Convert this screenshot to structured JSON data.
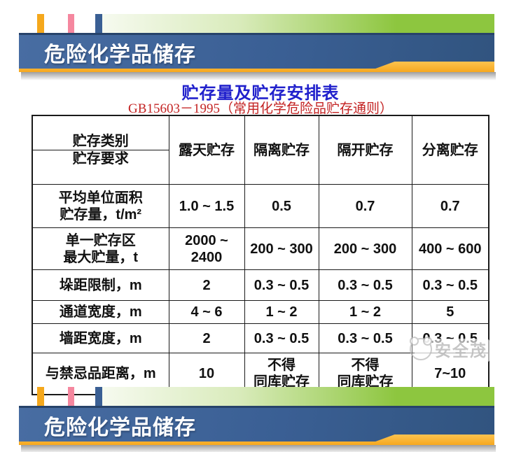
{
  "header": {
    "title": "危险化学品储存"
  },
  "footer": {
    "title": "危险化学品储存"
  },
  "main": {
    "title": "贮存量及贮存安排表",
    "subtitle": "GB15603－1995（常用化学危险品贮存通则）"
  },
  "table": {
    "corner_top": "贮存类别",
    "corner_bottom": "贮存要求",
    "columns": [
      "露天贮存",
      "隔离贮存",
      "隔开贮存",
      "分离贮存"
    ],
    "rows": [
      {
        "label": "平均单位面积\n贮存量，t/m²",
        "values": [
          "1.0 ~ 1.5",
          "0.5",
          "0.7",
          "0.7"
        ]
      },
      {
        "label": "单一贮存区\n最大贮量，t",
        "values": [
          "2000 ~\n2400",
          "200 ~ 300",
          "200 ~ 300",
          "400 ~ 600"
        ]
      },
      {
        "label": "垛距限制，m",
        "values": [
          "2",
          "0.3 ~ 0.5",
          "0.3 ~ 0.5",
          "0.3 ~ 0.5"
        ]
      },
      {
        "label": "通道宽度，m",
        "values": [
          "4 ~ 6",
          "1 ~ 2",
          "1 ~ 2",
          "5"
        ]
      },
      {
        "label": "墙距宽度，m",
        "values": [
          "2",
          "0.3 ~ 0.5",
          "0.3 ~ 0.5",
          "0.3 ~ 0.5"
        ]
      },
      {
        "label": "与禁忌品距离，m",
        "values": [
          "10",
          "不得\n同库贮存",
          "不得\n同库贮存",
          "7~10"
        ]
      }
    ]
  },
  "watermark": {
    "text": "安全茂"
  },
  "colors": {
    "banner-blue": "#3a5f94",
    "banner-blue-dark": "#27436a",
    "banner-orange": "#f6a81f",
    "bar-orange": "#f5a81c",
    "bar-pink": "#f5879f",
    "bar-blue": "#3a5f94",
    "green": "#8dc63f",
    "title-blue": "#2020cc",
    "subtitle-red": "#c32222",
    "table-border": "#1a1a1a",
    "watermark-gray": "#bcbcbc"
  }
}
